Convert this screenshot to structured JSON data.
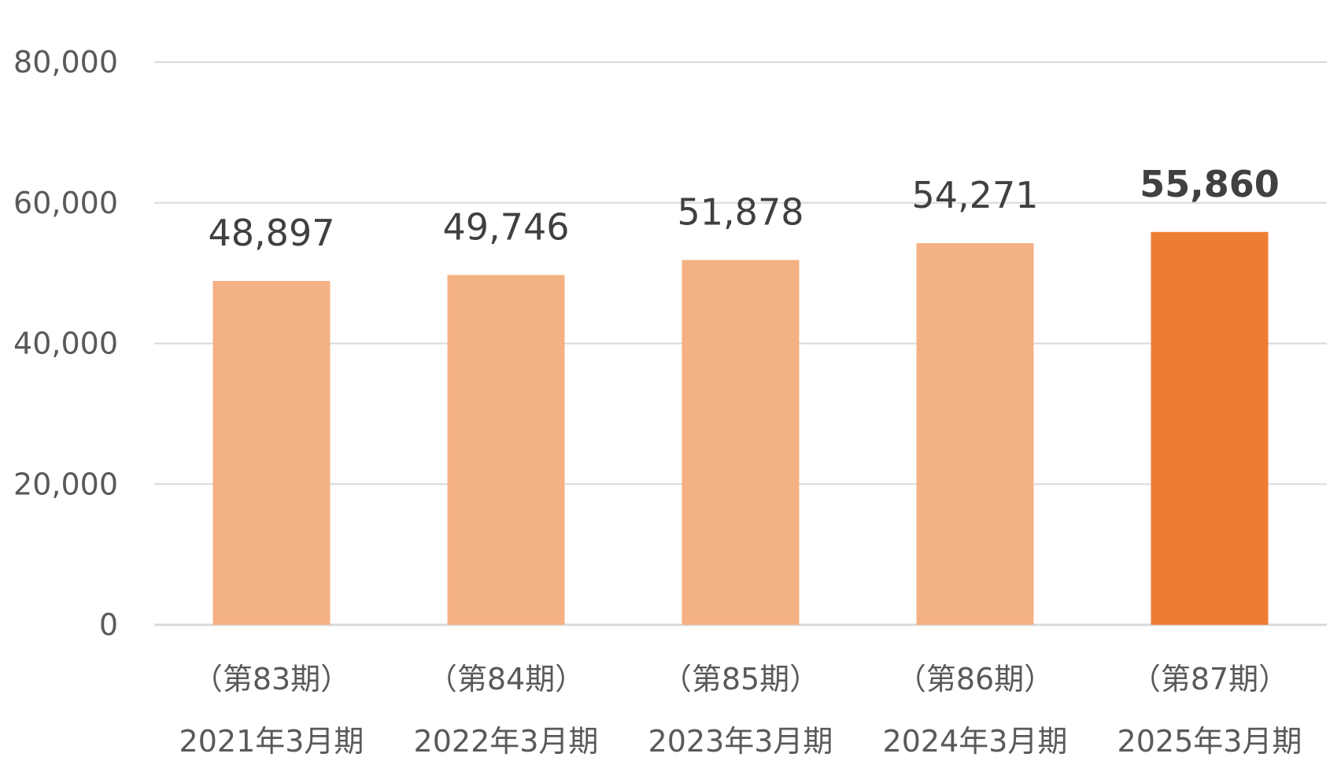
{
  "chart_data": {
    "type": "bar",
    "categories": [
      {
        "period": "（第83期）",
        "label": "2021年3月期"
      },
      {
        "period": "（第84期）",
        "label": "2022年3月期"
      },
      {
        "period": "（第85期）",
        "label": "2023年3月期"
      },
      {
        "period": "（第86期）",
        "label": "2024年3月期"
      },
      {
        "period": "（第87期）",
        "label": "2025年3月期"
      }
    ],
    "values": [
      48897,
      49746,
      51878,
      54271,
      55860
    ],
    "value_labels": [
      "48,897",
      "49,746",
      "51,878",
      "54,271",
      "55,860"
    ],
    "highlight_index": 4,
    "ylim": [
      0,
      80000
    ],
    "yticks": [
      0,
      20000,
      40000,
      60000,
      80000
    ],
    "ytick_labels": [
      "0",
      "20,000",
      "40,000",
      "60,000",
      "80,000"
    ],
    "grid": true,
    "legend": "none",
    "title": "",
    "xlabel": "",
    "ylabel": "",
    "colors": {
      "bar": "#f4b183",
      "highlight_bar": "#ed7d31",
      "gridline": "#d9d9d9",
      "tick_text": "#595959",
      "label_text": "#404040"
    }
  }
}
